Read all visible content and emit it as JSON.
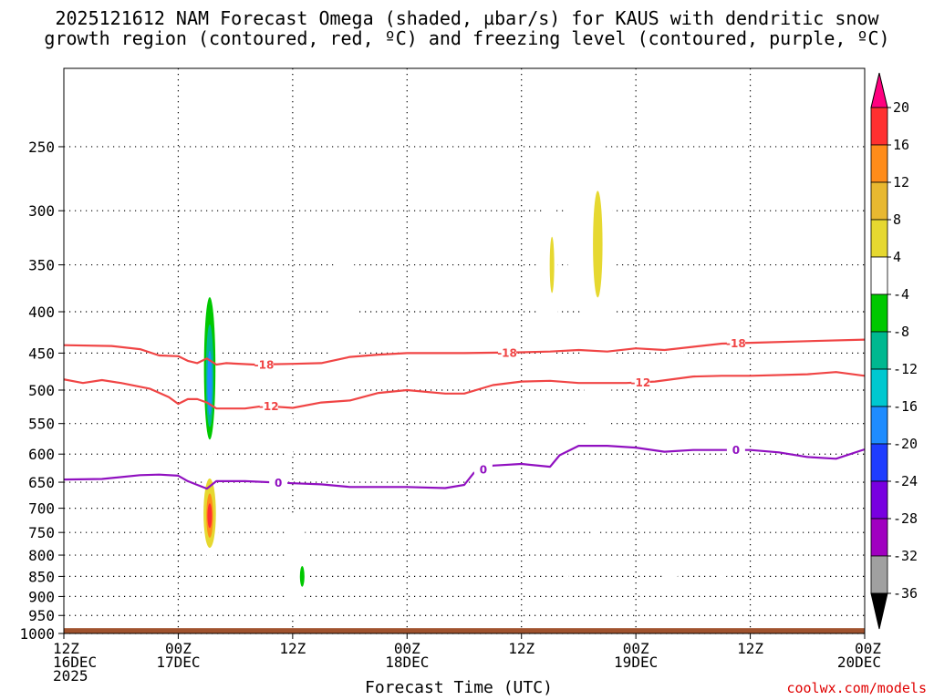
{
  "title": {
    "line1": "2025121612 NAM Forecast Omega (shaded, µbar/s) for KAUS with dendritic snow",
    "line2": "growth region (contoured, red, ºC) and freezing level (contoured, purple, ºC)"
  },
  "xlabel": "Forecast Time (UTC)",
  "credit": "coolwx.com/models",
  "chart_data": {
    "type": "time-height cross section",
    "x_hours_range": [
      0,
      84
    ],
    "y_pressure_range_hpa": [
      200,
      1000
    ],
    "y_axis": {
      "ticks": [
        250,
        300,
        350,
        400,
        450,
        500,
        550,
        600,
        650,
        700,
        750,
        800,
        850,
        900,
        950,
        1000
      ]
    },
    "x_axis": {
      "ticks": [
        {
          "hour": 0,
          "line1": "12Z",
          "line2": "16DEC",
          "line3": "2025"
        },
        {
          "hour": 12,
          "line1": "00Z",
          "line2": "17DEC",
          "line3": ""
        },
        {
          "hour": 24,
          "line1": "12Z",
          "line2": "",
          "line3": ""
        },
        {
          "hour": 36,
          "line1": "00Z",
          "line2": "18DEC",
          "line3": ""
        },
        {
          "hour": 48,
          "line1": "12Z",
          "line2": "",
          "line3": ""
        },
        {
          "hour": 60,
          "line1": "00Z",
          "line2": "19DEC",
          "line3": ""
        },
        {
          "hour": 72,
          "line1": "12Z",
          "line2": "",
          "line3": ""
        },
        {
          "hour": 84,
          "line1": "00Z",
          "line2": "20DEC",
          "line3": ""
        }
      ]
    },
    "colorbar": {
      "levels": [
        "20",
        "16",
        "12",
        "8",
        "4",
        "-4",
        "-8",
        "-12",
        "-16",
        "-20",
        "-24",
        "-28",
        "-32",
        "-36"
      ],
      "colors": [
        "#ff007f",
        "#ff3030",
        "#ff8c1a",
        "#e8b830",
        "#e6d830",
        "#ffffff",
        "#00c800",
        "#00b890",
        "#00c8d0",
        "#1e8cff",
        "#1e3cff",
        "#7800e0",
        "#a000c0",
        "#a0a0a0",
        "#000000"
      ]
    },
    "contours": [
      {
        "name": "-18",
        "color": "#f04545",
        "label_hours": [
          21,
          46.5,
          70.5
        ],
        "points": [
          [
            0,
            440
          ],
          [
            5,
            441
          ],
          [
            8,
            445
          ],
          [
            10,
            453
          ],
          [
            12,
            454
          ],
          [
            13,
            460
          ],
          [
            14,
            463
          ],
          [
            15,
            457
          ],
          [
            16,
            465
          ],
          [
            17,
            463
          ],
          [
            20,
            465
          ],
          [
            24,
            464
          ],
          [
            27,
            463
          ],
          [
            30,
            455
          ],
          [
            33,
            452
          ],
          [
            36,
            450
          ],
          [
            42,
            450
          ],
          [
            48,
            449
          ],
          [
            51,
            448
          ],
          [
            54,
            446
          ],
          [
            57,
            448
          ],
          [
            60,
            444
          ],
          [
            63,
            446
          ],
          [
            66,
            442
          ],
          [
            69,
            438
          ],
          [
            72,
            437
          ],
          [
            78,
            435
          ],
          [
            84,
            433
          ]
        ]
      },
      {
        "name": "-12",
        "color": "#f04545",
        "label_hours": [
          21.5,
          60.5
        ],
        "points": [
          [
            0,
            485
          ],
          [
            2,
            490
          ],
          [
            4,
            486
          ],
          [
            6,
            490
          ],
          [
            9,
            498
          ],
          [
            11,
            510
          ],
          [
            12,
            520
          ],
          [
            13,
            513
          ],
          [
            14,
            513
          ],
          [
            15,
            518
          ],
          [
            16,
            527
          ],
          [
            19,
            527
          ],
          [
            21,
            523
          ],
          [
            24,
            526
          ],
          [
            27,
            518
          ],
          [
            30,
            515
          ],
          [
            33,
            504
          ],
          [
            36,
            500
          ],
          [
            40,
            505
          ],
          [
            42,
            505
          ],
          [
            45,
            493
          ],
          [
            48,
            488
          ],
          [
            51,
            487
          ],
          [
            54,
            490
          ],
          [
            57,
            490
          ],
          [
            59,
            490
          ],
          [
            62,
            488
          ],
          [
            66,
            481
          ],
          [
            69,
            480
          ],
          [
            72,
            480
          ],
          [
            78,
            478
          ],
          [
            81,
            475
          ],
          [
            84,
            480
          ]
        ]
      },
      {
        "name": "0",
        "color": "#9010c0",
        "label_hours": [
          22.5,
          44,
          70.5
        ],
        "points": [
          [
            0,
            645
          ],
          [
            4,
            644
          ],
          [
            8,
            637
          ],
          [
            10,
            636
          ],
          [
            12,
            638
          ],
          [
            13,
            648
          ],
          [
            15,
            662
          ],
          [
            16,
            648
          ],
          [
            19,
            648
          ],
          [
            24,
            652
          ],
          [
            27,
            654
          ],
          [
            30,
            659
          ],
          [
            33,
            659
          ],
          [
            36,
            659
          ],
          [
            40,
            661
          ],
          [
            42,
            655
          ],
          [
            43,
            633
          ],
          [
            45,
            620
          ],
          [
            48,
            617
          ],
          [
            51,
            622
          ],
          [
            52,
            602
          ],
          [
            54,
            586
          ],
          [
            57,
            586
          ],
          [
            60,
            589
          ],
          [
            63,
            596
          ],
          [
            66,
            593
          ],
          [
            72,
            593
          ],
          [
            75,
            597
          ],
          [
            78,
            605
          ],
          [
            81,
            608
          ],
          [
            84,
            592
          ]
        ]
      }
    ],
    "omega_regions": [
      {
        "level": "-4",
        "hour": 15.3,
        "pressure": 470,
        "rx": 1.0,
        "ry": 120
      },
      {
        "level": "-8",
        "hour": 15.3,
        "pressure": 470,
        "rx": 0.6,
        "ry": 95
      },
      {
        "level": "-12",
        "hour": 15.3,
        "pressure": 480,
        "rx": 0.4,
        "ry": 70
      },
      {
        "level": "-20",
        "hour": 15.3,
        "pressure": 490,
        "rx": 0.25,
        "ry": 45
      },
      {
        "level": "4",
        "hour": 15.3,
        "pressure": 710,
        "rx": 1.0,
        "ry": 90
      },
      {
        "level": "8",
        "hour": 15.3,
        "pressure": 710,
        "rx": 0.65,
        "ry": 70
      },
      {
        "level": "16",
        "hour": 15.3,
        "pressure": 715,
        "rx": 0.35,
        "ry": 45
      },
      {
        "level": "20",
        "hour": 15.3,
        "pressure": 715,
        "rx": 0.15,
        "ry": 25
      },
      {
        "level": "4",
        "hour": 18.0,
        "pressure": 485,
        "rx": 0.3,
        "ry": 35
      },
      {
        "level": "4",
        "hour": 23.6,
        "pressure": 570,
        "rx": 0.5,
        "ry": 50
      },
      {
        "level": "-4",
        "hour": 21.5,
        "pressure": 885,
        "rx": 0.25,
        "ry": 22
      },
      {
        "level": "-4",
        "hour": 24.4,
        "pressure": 820,
        "rx": 1.1,
        "ry": 125
      },
      {
        "level": "-8",
        "hour": 25.0,
        "pressure": 850,
        "rx": 0.2,
        "ry": 25
      },
      {
        "level": "4",
        "hour": 29.4,
        "pressure": 410,
        "rx": 1.5,
        "ry": 90
      },
      {
        "level": "-4",
        "hour": 34.1,
        "pressure": 920,
        "rx": 0.4,
        "ry": 18
      },
      {
        "level": "4",
        "hour": 50.8,
        "pressure": 375,
        "rx": 1.0,
        "ry": 110
      },
      {
        "level": "8",
        "hour": 51.2,
        "pressure": 350,
        "rx": 0.15,
        "ry": 28
      },
      {
        "level": "4",
        "hour": 54.0,
        "pressure": 315,
        "rx": 1.3,
        "ry": 70
      },
      {
        "level": "4",
        "hour": 56.0,
        "pressure": 380,
        "rx": 1.8,
        "ry": 170
      },
      {
        "level": "8",
        "hour": 56.0,
        "pressure": 330,
        "rx": 0.5,
        "ry": 50
      },
      {
        "level": "-4",
        "hour": 52.7,
        "pressure": 870,
        "rx": 0.3,
        "ry": 30
      },
      {
        "level": "-4",
        "hour": 55.7,
        "pressure": 735,
        "rx": 0.45,
        "ry": 35
      },
      {
        "level": "-4",
        "hour": 60.0,
        "pressure": 470,
        "rx": 0.15,
        "ry": 25
      },
      {
        "level": "-4",
        "hour": 64.1,
        "pressure": 445,
        "rx": 0.9,
        "ry": 48
      },
      {
        "level": "4",
        "hour": 63.6,
        "pressure": 845,
        "rx": 0.8,
        "ry": 20
      },
      {
        "level": "4",
        "hour": 69.0,
        "pressure": 830,
        "rx": 0.7,
        "ry": 28
      }
    ],
    "ground": {
      "color": "#a0522d",
      "top_pressure": 985
    }
  }
}
